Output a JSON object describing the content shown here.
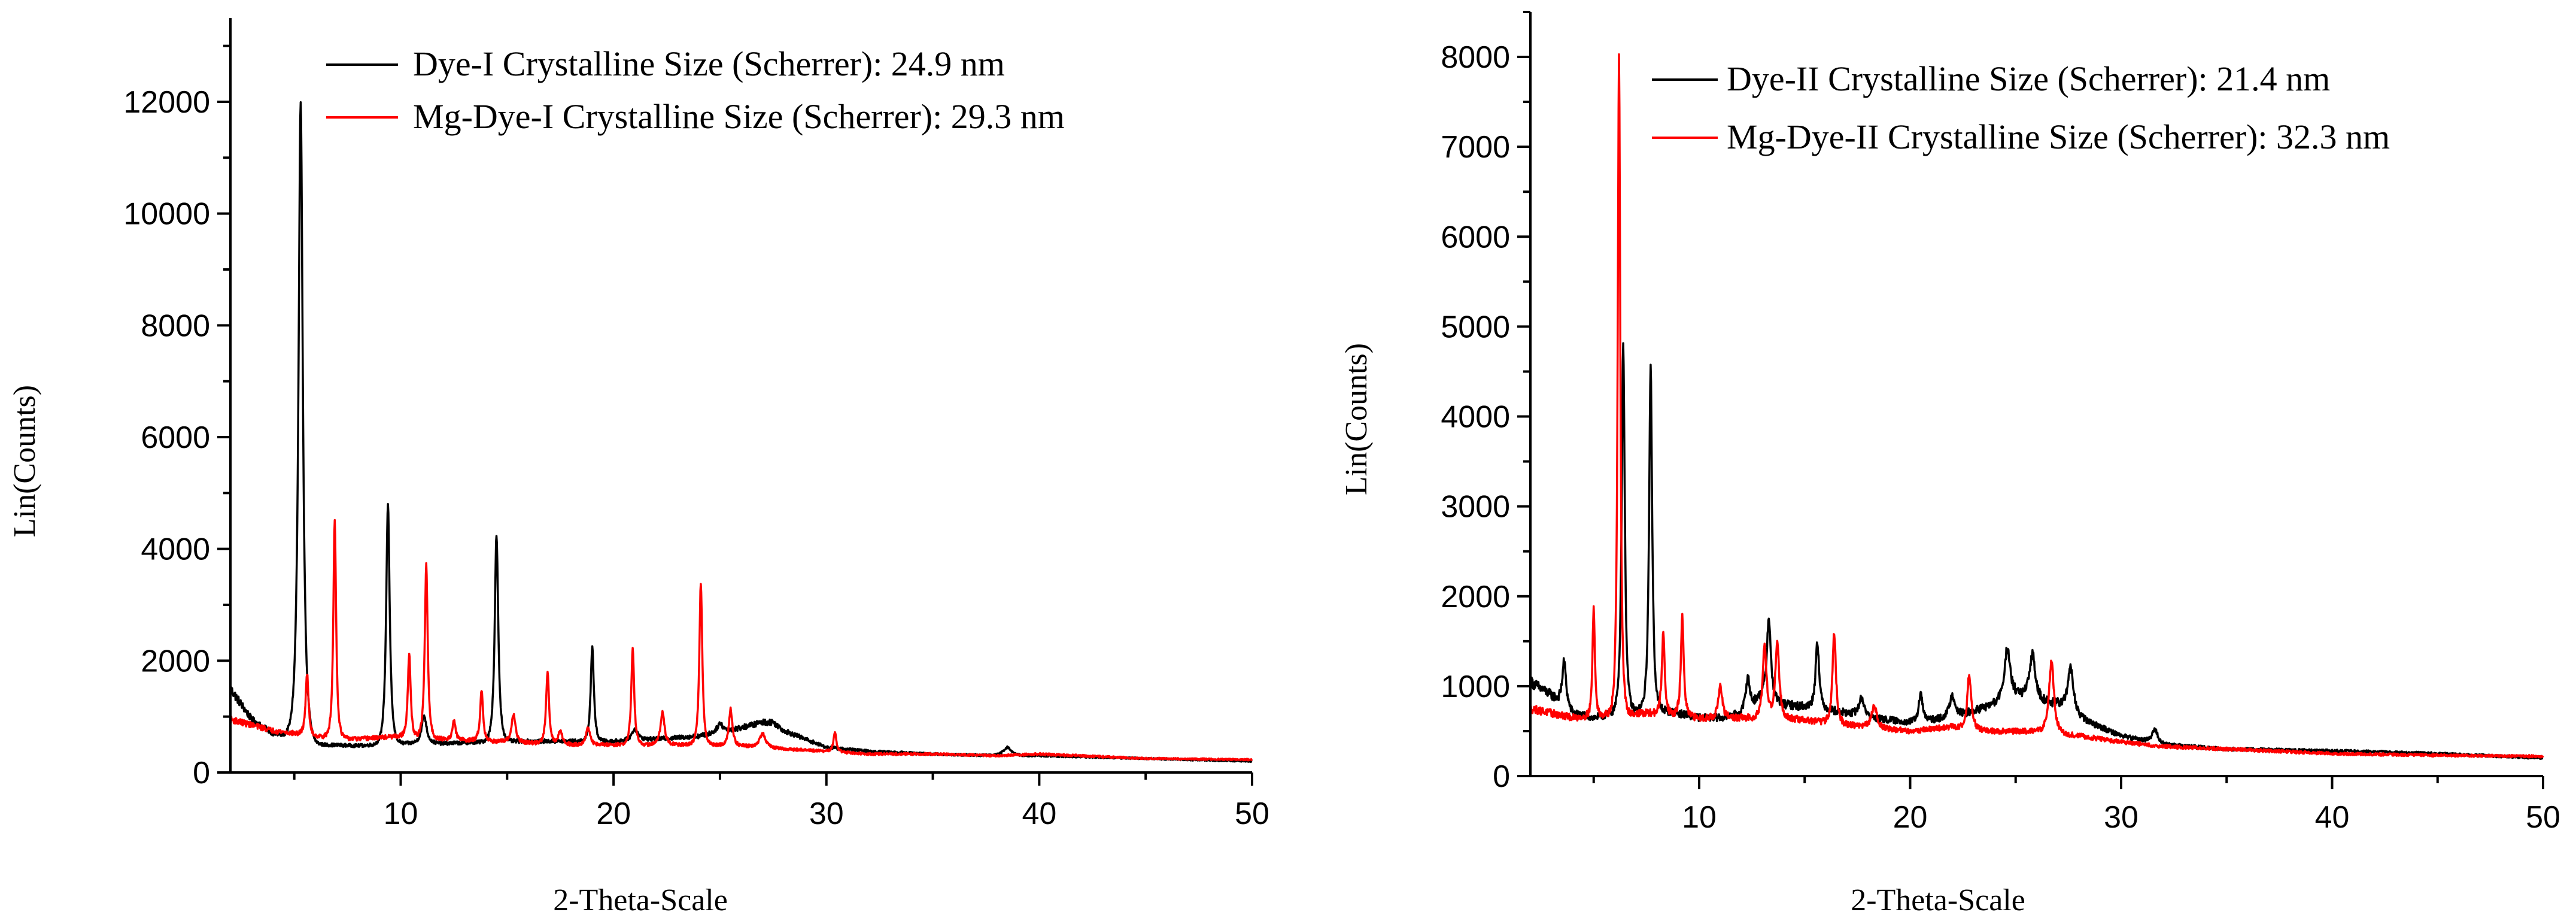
{
  "chart_data": [
    {
      "type": "line",
      "xlabel": "2-Theta-Scale",
      "ylabel": "Lin(Counts)",
      "xlim": [
        2,
        50
      ],
      "ylim": [
        0,
        13500
      ],
      "xticks": [
        10,
        20,
        30,
        40,
        50
      ],
      "yticks": [
        0,
        2000,
        4000,
        6000,
        8000,
        10000,
        12000
      ],
      "legend_position": "top-center",
      "series": [
        {
          "name": "Dye-I Crystalline Size (Scherrer): 24.9 nm",
          "color": "#000000",
          "baseline": [
            [
              2,
              1500
            ],
            [
              3,
              950
            ],
            [
              4,
              700
            ],
            [
              6,
              500
            ],
            [
              8,
              480
            ],
            [
              10,
              520
            ],
            [
              12,
              520
            ],
            [
              15,
              560
            ],
            [
              18,
              560
            ],
            [
              20,
              560
            ],
            [
              22,
              600
            ],
            [
              24,
              650
            ],
            [
              26,
              800
            ],
            [
              27,
              900
            ],
            [
              27.5,
              900
            ],
            [
              28,
              750
            ],
            [
              30,
              450
            ],
            [
              32,
              380
            ],
            [
              35,
              330
            ],
            [
              38,
              300
            ],
            [
              40,
              300
            ],
            [
              45,
              250
            ],
            [
              50,
              200
            ]
          ],
          "peaks": [
            [
              5.3,
              11400,
              0.22
            ],
            [
              9.4,
              4300,
              0.18
            ],
            [
              11.1,
              500,
              0.25
            ],
            [
              14.5,
              3700,
              0.18
            ],
            [
              19.0,
              1700,
              0.16
            ],
            [
              21.0,
              200,
              0.3
            ],
            [
              25.0,
              150,
              0.3
            ],
            [
              38.5,
              150,
              0.4
            ]
          ]
        },
        {
          "name": "Mg-Dye-I Crystalline Size (Scherrer): 29.3 nm",
          "color": "#ff0000",
          "baseline": [
            [
              2,
              950
            ],
            [
              4,
              750
            ],
            [
              6,
              650
            ],
            [
              8,
              600
            ],
            [
              10,
              650
            ],
            [
              12,
              600
            ],
            [
              15,
              550
            ],
            [
              18,
              500
            ],
            [
              20,
              500
            ],
            [
              22,
              500
            ],
            [
              24,
              500
            ],
            [
              26,
              480
            ],
            [
              28,
              420
            ],
            [
              30,
              380
            ],
            [
              32,
              330
            ],
            [
              35,
              330
            ],
            [
              38,
              300
            ],
            [
              40,
              330
            ],
            [
              45,
              250
            ],
            [
              50,
              230
            ]
          ],
          "peaks": [
            [
              5.6,
              1100,
              0.15
            ],
            [
              6.9,
              3900,
              0.14
            ],
            [
              10.4,
              1500,
              0.14
            ],
            [
              11.2,
              3100,
              0.15
            ],
            [
              12.5,
              350,
              0.15
            ],
            [
              13.8,
              900,
              0.15
            ],
            [
              15.3,
              500,
              0.2
            ],
            [
              16.9,
              1300,
              0.15
            ],
            [
              17.5,
              250,
              0.2
            ],
            [
              18.8,
              300,
              0.2
            ],
            [
              20.9,
              1700,
              0.15
            ],
            [
              22.3,
              600,
              0.2
            ],
            [
              24.1,
              2900,
              0.15
            ],
            [
              25.5,
              650,
              0.18
            ],
            [
              27.0,
              250,
              0.3
            ],
            [
              30.4,
              350,
              0.15
            ]
          ]
        }
      ]
    },
    {
      "type": "line",
      "xlabel": "2-Theta-Scale",
      "ylabel": "Lin(Counts)",
      "xlim": [
        2,
        50
      ],
      "ylim": [
        0,
        8500
      ],
      "xticks": [
        10,
        20,
        30,
        40,
        50
      ],
      "yticks": [
        0,
        1000,
        2000,
        3000,
        4000,
        5000,
        6000,
        7000,
        8000
      ],
      "legend_position": "top-center",
      "series": [
        {
          "name": "Dye-II Crystalline Size (Scherrer): 21.4 nm",
          "color": "#000000",
          "baseline": [
            [
              2,
              1050
            ],
            [
              3,
              900
            ],
            [
              4,
              700
            ],
            [
              5,
              650
            ],
            [
              6,
              700
            ],
            [
              8,
              750
            ],
            [
              9,
              700
            ],
            [
              10,
              650
            ],
            [
              11,
              650
            ],
            [
              12,
              700
            ],
            [
              13,
              900
            ],
            [
              14,
              800
            ],
            [
              16,
              750
            ],
            [
              18,
              650
            ],
            [
              20,
              600
            ],
            [
              22,
              650
            ],
            [
              24,
              800
            ],
            [
              25,
              900
            ],
            [
              26,
              850
            ],
            [
              27,
              800
            ],
            [
              28,
              650
            ],
            [
              30,
              450
            ],
            [
              32,
              350
            ],
            [
              35,
              300
            ],
            [
              40,
              280
            ],
            [
              45,
              250
            ],
            [
              50,
              200
            ]
          ],
          "peaks": [
            [
              3.6,
              500,
              0.2
            ],
            [
              6.4,
              4100,
              0.16
            ],
            [
              7.7,
              3800,
              0.16
            ],
            [
              12.3,
              350,
              0.2
            ],
            [
              13.3,
              900,
              0.2
            ],
            [
              15.6,
              750,
              0.18
            ],
            [
              17.7,
              200,
              0.3
            ],
            [
              20.5,
              300,
              0.2
            ],
            [
              22.0,
              250,
              0.3
            ],
            [
              24.6,
              550,
              0.3
            ],
            [
              25.8,
              500,
              0.3
            ],
            [
              27.6,
              500,
              0.3
            ],
            [
              31.6,
              150,
              0.3
            ]
          ]
        },
        {
          "name": "Mg-Dye-II Crystalline Size (Scherrer): 32.3 nm",
          "color": "#ff0000",
          "baseline": [
            [
              2,
              750
            ],
            [
              4,
              650
            ],
            [
              6,
              700
            ],
            [
              8,
              700
            ],
            [
              10,
              650
            ],
            [
              12,
              650
            ],
            [
              14,
              650
            ],
            [
              16,
              600
            ],
            [
              18,
              550
            ],
            [
              20,
              500
            ],
            [
              22,
              550
            ],
            [
              24,
              500
            ],
            [
              26,
              500
            ],
            [
              28,
              450
            ],
            [
              30,
              380
            ],
            [
              32,
              330
            ],
            [
              35,
              300
            ],
            [
              40,
              250
            ],
            [
              45,
              230
            ],
            [
              50,
              220
            ]
          ],
          "peaks": [
            [
              5.0,
              1200,
              0.12
            ],
            [
              6.2,
              7300,
              0.13
            ],
            [
              8.3,
              900,
              0.15
            ],
            [
              9.2,
              1100,
              0.15
            ],
            [
              11.0,
              350,
              0.2
            ],
            [
              13.1,
              800,
              0.2
            ],
            [
              13.7,
              850,
              0.2
            ],
            [
              16.4,
              1000,
              0.18
            ],
            [
              18.3,
              250,
              0.25
            ],
            [
              22.8,
              600,
              0.2
            ],
            [
              26.7,
              800,
              0.25
            ]
          ]
        }
      ]
    }
  ]
}
